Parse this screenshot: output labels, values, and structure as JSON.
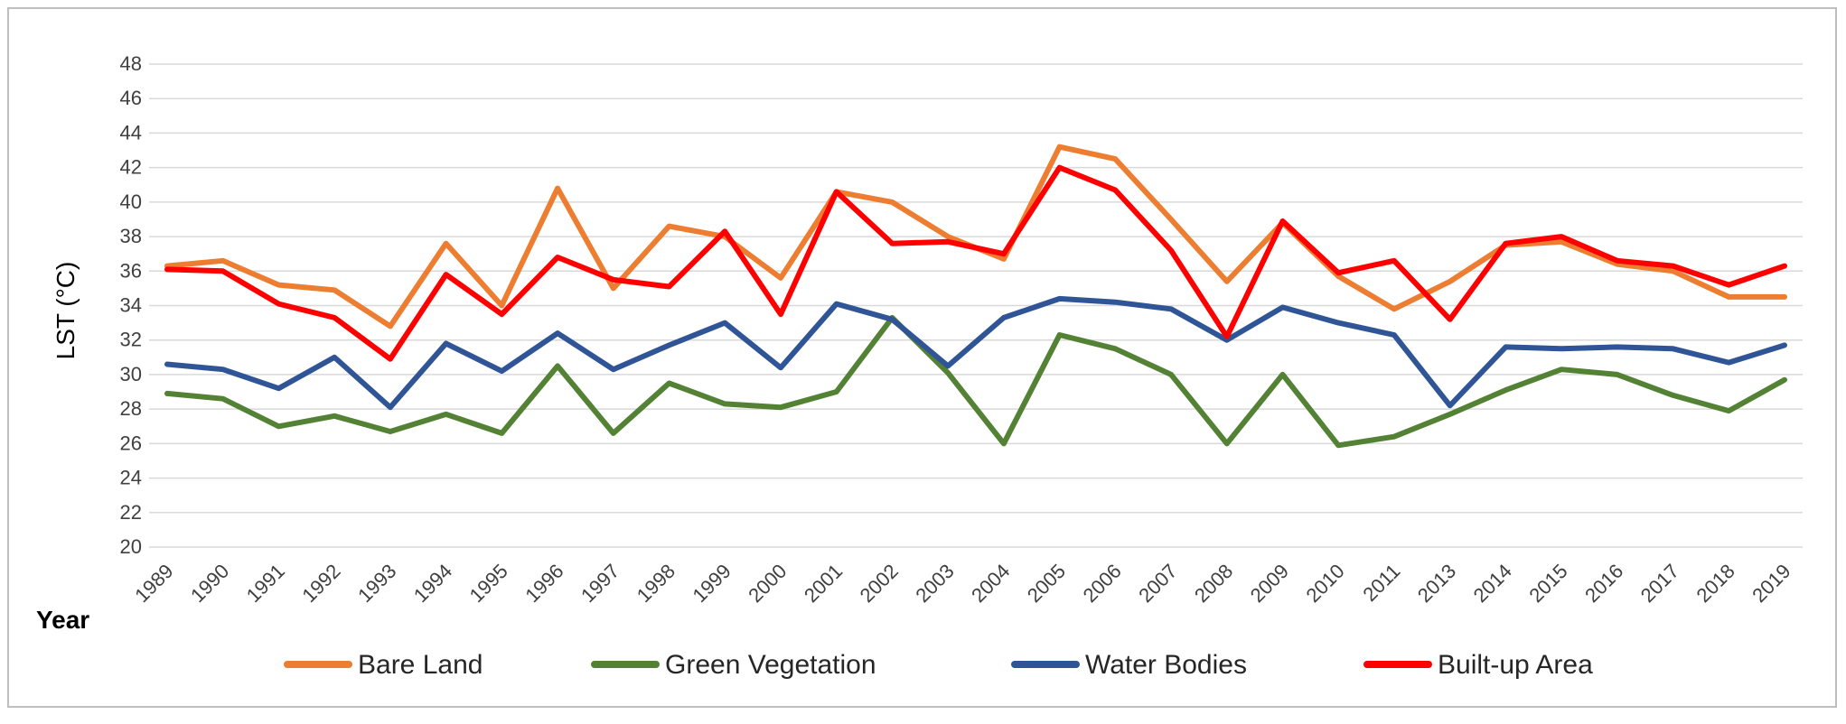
{
  "chart_data": {
    "type": "line",
    "title": "",
    "xlabel": "Year",
    "ylabel": "LST (°C)",
    "ylim": [
      20,
      48
    ],
    "ytick_step": 2,
    "yticks": [
      "20",
      "22",
      "24",
      "26",
      "28",
      "30",
      "32",
      "34",
      "36",
      "38",
      "40",
      "42",
      "44",
      "46",
      "48"
    ],
    "grid": "horizontal",
    "legend_position": "bottom",
    "categories": [
      "1989",
      "1990",
      "1991",
      "1992",
      "1993",
      "1994",
      "1995",
      "1996",
      "1997",
      "1998",
      "1999",
      "2000",
      "2001",
      "2002",
      "2003",
      "2004",
      "2005",
      "2006",
      "2007",
      "2008",
      "2009",
      "2010",
      "2011",
      "2013",
      "2014",
      "2015",
      "2016",
      "2017",
      "2018",
      "2019"
    ],
    "series": [
      {
        "name": "Bare Land",
        "color": "#ED7D31",
        "values": [
          36.3,
          36.6,
          35.2,
          34.9,
          32.8,
          37.6,
          34.0,
          40.8,
          35.0,
          38.6,
          38.0,
          35.6,
          40.6,
          40.0,
          38.0,
          36.7,
          43.2,
          42.5,
          39.0,
          35.4,
          38.8,
          35.7,
          33.8,
          35.4,
          37.5,
          37.7,
          36.4,
          36.0,
          34.5,
          34.5
        ]
      },
      {
        "name": "Green Vegetation",
        "color": "#548235",
        "values": [
          28.9,
          28.6,
          27.0,
          27.6,
          26.7,
          27.7,
          26.6,
          30.5,
          26.6,
          29.5,
          28.3,
          28.1,
          29.0,
          33.3,
          30.1,
          26.0,
          32.3,
          31.5,
          30.0,
          26.0,
          30.0,
          25.9,
          26.4,
          27.7,
          29.1,
          30.3,
          30.0,
          28.8,
          27.9,
          29.7
        ]
      },
      {
        "name": "Water Bodies",
        "color": "#2F5597",
        "values": [
          30.6,
          30.3,
          29.2,
          31.0,
          28.1,
          31.8,
          30.2,
          32.4,
          30.3,
          31.7,
          33.0,
          30.4,
          34.1,
          33.2,
          30.5,
          33.3,
          34.4,
          34.2,
          33.8,
          32.0,
          33.9,
          33.0,
          32.3,
          28.2,
          31.6,
          31.5,
          31.6,
          31.5,
          30.7,
          31.7
        ]
      },
      {
        "name": "Built-up Area",
        "color": "#FF0000",
        "values": [
          36.1,
          36.0,
          34.1,
          33.3,
          30.9,
          35.8,
          33.5,
          36.8,
          35.5,
          35.1,
          38.3,
          33.5,
          40.6,
          37.6,
          37.7,
          37.0,
          42.0,
          40.7,
          37.2,
          32.2,
          38.9,
          35.9,
          36.6,
          33.2,
          37.6,
          38.0,
          36.6,
          36.3,
          35.2,
          36.3
        ]
      }
    ]
  }
}
